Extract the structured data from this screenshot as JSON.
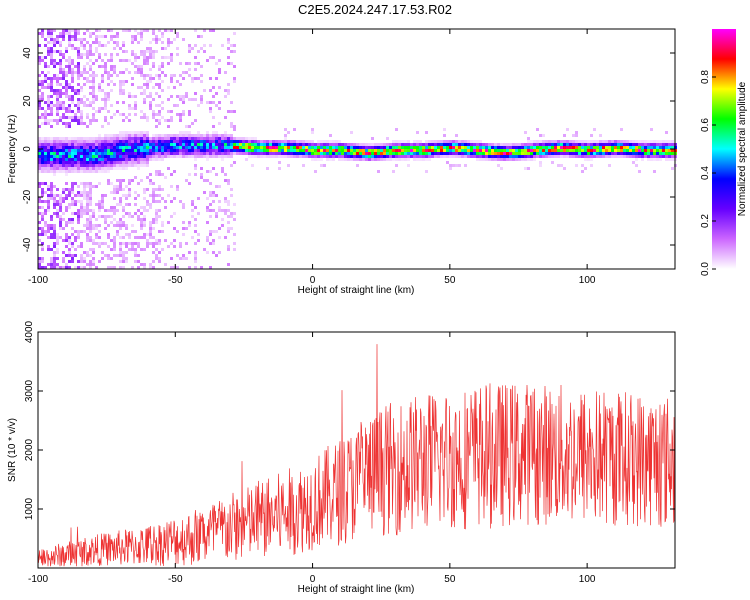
{
  "chart_data": [
    {
      "type": "heatmap",
      "xlabel": "Height of straight line (km)",
      "ylabel": "Frequency (Hz)",
      "xlim": [
        -100,
        132
      ],
      "ylim": [
        -50,
        50
      ],
      "xticks": [
        "-100",
        "-50",
        "0",
        "50",
        "100"
      ],
      "xtick_values": [
        -100,
        -50,
        0,
        50,
        100
      ],
      "yticks": [
        "-40",
        "-20",
        "0",
        "20",
        "40"
      ],
      "ytick_values": [
        -40,
        -20,
        0,
        20,
        40
      ],
      "colorbar": {
        "label": "Normalized spectral amplitude",
        "range": [
          0,
          1
        ],
        "ticks": [
          "0.0",
          "0.2",
          "0.4",
          "0.6",
          "0.8"
        ],
        "tick_values": [
          0,
          0.2,
          0.4,
          0.6,
          0.8
        ],
        "colormap": [
          "#ffffff",
          "#cc66ff",
          "#6600ff",
          "#0000ff",
          "#00ffff",
          "#00ff00",
          "#ffff00",
          "#ff0000",
          "#ff00ff"
        ]
      },
      "band_center_hz": [
        [
          -100,
          -2
        ],
        [
          -90,
          -2
        ],
        [
          -80,
          -2
        ],
        [
          -70,
          0
        ],
        [
          -60,
          1
        ],
        [
          -50,
          2
        ],
        [
          -40,
          2
        ],
        [
          -30,
          2
        ],
        [
          -20,
          1
        ],
        [
          -10,
          1
        ],
        [
          0,
          0
        ],
        [
          10,
          0
        ],
        [
          20,
          -1
        ],
        [
          30,
          0
        ],
        [
          40,
          0
        ],
        [
          50,
          1
        ],
        [
          60,
          0
        ],
        [
          70,
          -1
        ],
        [
          80,
          0
        ],
        [
          90,
          1
        ],
        [
          100,
          0
        ],
        [
          110,
          1
        ],
        [
          120,
          0
        ],
        [
          132,
          0
        ]
      ]
    },
    {
      "type": "line",
      "xlabel": "Height of straight line (km)",
      "ylabel": "SNR (10 * v/v)",
      "xlim": [
        -100,
        132
      ],
      "ylim": [
        0,
        4000
      ],
      "xticks": [
        "-100",
        "-50",
        "0",
        "50",
        "100"
      ],
      "xtick_values": [
        -100,
        -50,
        0,
        50,
        100
      ],
      "yticks": [
        "1000",
        "2000",
        "3000",
        "4000"
      ],
      "ytick_values": [
        1000,
        2000,
        3000,
        4000
      ],
      "color": "#ee3333",
      "trend": [
        [
          -100,
          150
        ],
        [
          -80,
          300
        ],
        [
          -60,
          380
        ],
        [
          -40,
          550
        ],
        [
          -20,
          800
        ],
        [
          -5,
          1000
        ],
        [
          10,
          1300
        ],
        [
          25,
          1650
        ],
        [
          40,
          1800
        ],
        [
          50,
          1850
        ],
        [
          60,
          1900
        ],
        [
          80,
          1950
        ],
        [
          100,
          1900
        ],
        [
          120,
          1850
        ],
        [
          132,
          1800
        ]
      ],
      "spread": [
        [
          -100,
          180
        ],
        [
          -60,
          350
        ],
        [
          -30,
          600
        ],
        [
          0,
          800
        ],
        [
          30,
          1150
        ],
        [
          60,
          1250
        ],
        [
          132,
          1150
        ]
      ]
    }
  ],
  "title": "C2E5.2024.247.17.53.R02"
}
